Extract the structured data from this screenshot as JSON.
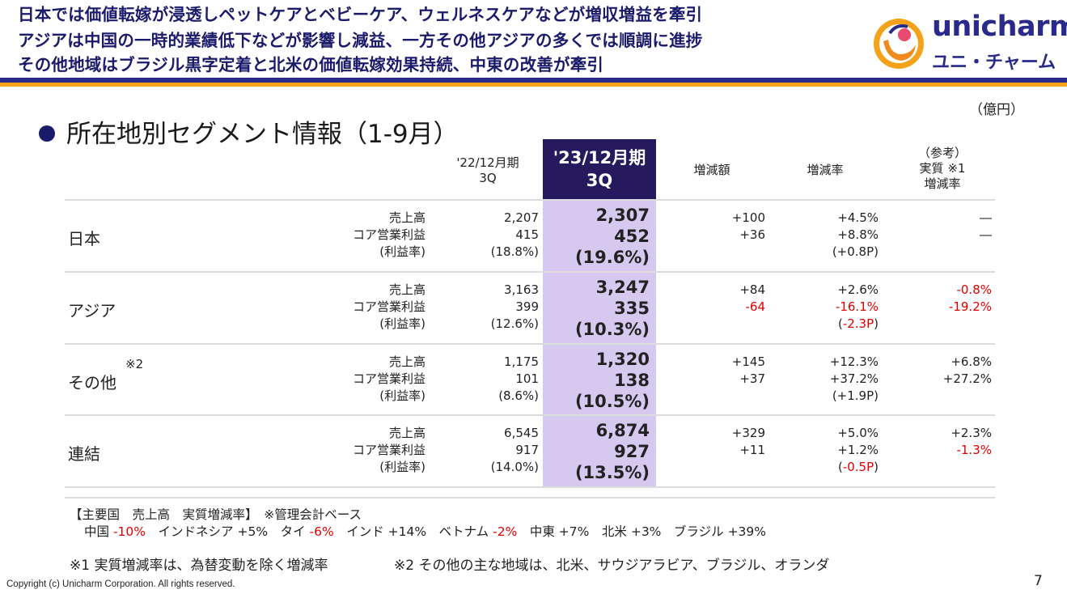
{
  "header": {
    "line1": "日本では価値転嫁が浸透しペットケアとベビーケア、ウェルネスケアなどが増収増益を牽引",
    "line2": "アジアは中国の一時的業績低下などが影響し減益、一方その他アジアの多くでは順調に進捗",
    "line3": "その他地域はブラジル黒字定着と北米の価値転嫁効果持続、中東の改善が牽引"
  },
  "logo": {
    "word": "unicharm",
    "kana": "ユニ・チャーム"
  },
  "unit_label": "（億円）",
  "section_title": "所在地別セグメント情報（1-9月）",
  "columns": {
    "prev": [
      "'22/12月期",
      "3Q"
    ],
    "curr": [
      "'23/12月期",
      "3Q"
    ],
    "change_amount": "増減額",
    "change_rate": "増減率",
    "reference": [
      "（参考）",
      "実質 ※1",
      "増減率"
    ]
  },
  "metric_labels": [
    "売上高",
    "コア営業利益",
    "(利益率)"
  ],
  "rows": [
    {
      "region": "日本",
      "sup": "",
      "prev": [
        "2,207",
        "415",
        "(18.8%)"
      ],
      "curr": [
        "2,307",
        "452",
        "(19.6%)"
      ],
      "amount": [
        "+100",
        "+36"
      ],
      "rate": [
        "+4.5%",
        "+8.8%"
      ],
      "rate_margin": {
        "pre": "(",
        "val": "+0.8P",
        "post": ")"
      },
      "real": [
        "―",
        "―"
      ]
    },
    {
      "region": "アジア",
      "sup": "",
      "prev": [
        "3,163",
        "399",
        "(12.6%)"
      ],
      "curr": [
        "3,247",
        "335",
        "(10.3%)"
      ],
      "amount": [
        "+84",
        "-64"
      ],
      "rate": [
        "+2.6%",
        "-16.1%"
      ],
      "rate_margin": {
        "pre": "(",
        "val": "-2.3P",
        "post": ")"
      },
      "real": [
        "-0.8%",
        "-19.2%"
      ]
    },
    {
      "region": "その他",
      "sup": "※2",
      "prev": [
        "1,175",
        "101",
        "(8.6%)"
      ],
      "curr": [
        "1,320",
        "138",
        "(10.5%)"
      ],
      "amount": [
        "+145",
        "+37"
      ],
      "rate": [
        "+12.3%",
        "+37.2%"
      ],
      "rate_margin": {
        "pre": "(",
        "val": "+1.9P",
        "post": ")"
      },
      "real": [
        "+6.8%",
        "+27.2%"
      ]
    },
    {
      "region": "連結",
      "sup": "",
      "prev": [
        "6,545",
        "917",
        "(14.0%)"
      ],
      "curr": [
        "6,874",
        "927",
        "(13.5%)"
      ],
      "amount": [
        "+329",
        "+11"
      ],
      "rate": [
        "+5.0%",
        "+1.2%"
      ],
      "rate_margin": {
        "pre": "(",
        "val": "-0.5P",
        "post": ")"
      },
      "real": [
        "+2.3%",
        "-1.3%"
      ]
    }
  ],
  "notes": {
    "main_countries_title": "【主要国　売上高　実質増減率】　※管理会計ベース",
    "countries": [
      {
        "name": "中国",
        "value": "-10%",
        "negative": true
      },
      {
        "name": "インドネシア",
        "value": "+5%",
        "negative": false
      },
      {
        "name": "タイ",
        "value": "-6%",
        "negative": true
      },
      {
        "name": "インド",
        "value": "+14%",
        "negative": false
      },
      {
        "name": "ベトナム",
        "value": "-2%",
        "negative": true
      },
      {
        "name": "中東",
        "value": "+7%",
        "negative": false
      },
      {
        "name": "北米",
        "value": "+3%",
        "negative": false
      },
      {
        "name": "ブラジル",
        "value": "+39%",
        "negative": false
      }
    ],
    "footnote1": "※1 実質増減率は、為替変動を除く増減率",
    "footnote2": "※2 その他の主な地域は、北米、サウジアラビア、ブラジル、オランダ"
  },
  "footer": {
    "copyright": "Copyright (c) Unicharm Corporation. All rights reserved.",
    "page": "7"
  },
  "colors": {
    "navy": "#1b1b6b",
    "orange": "#f5a21a",
    "highlight": "#d5c9ef",
    "negative": "#e00000"
  }
}
